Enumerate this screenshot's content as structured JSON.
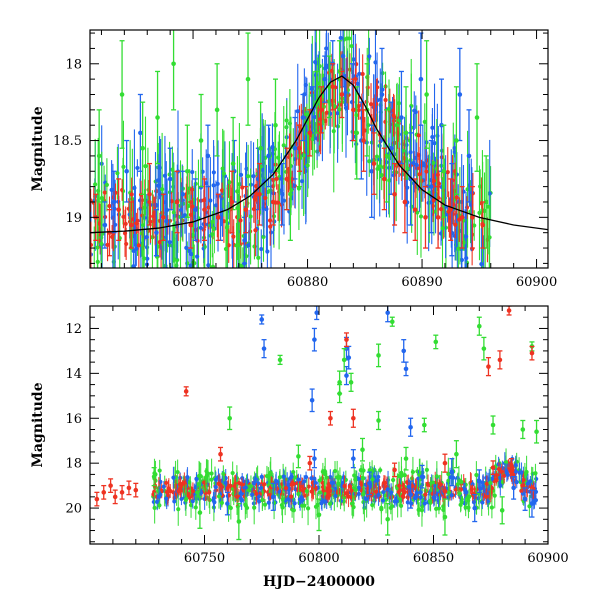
{
  "chart_data": [
    {
      "type": "scatter",
      "panel": "top",
      "title": "",
      "xlabel": "",
      "ylabel": "Magnitude",
      "xlim": [
        60861,
        60901
      ],
      "ylim": [
        19.33,
        17.78
      ],
      "y_inverted": true,
      "xticks": [
        60870,
        60880,
        60890,
        60900
      ],
      "yticks": [
        18,
        18.5,
        19
      ],
      "grid": false,
      "legend": "none",
      "series": [
        {
          "color": "#2266ee",
          "points": [
            [
              60862.3,
              19.05,
              0.15
            ],
            [
              60863.1,
              18.9,
              0.2
            ],
            [
              60864.2,
              18.7,
              0.2
            ],
            [
              60865.4,
              18.45,
              0.25
            ],
            [
              60866.8,
              19.1,
              0.15
            ],
            [
              60868.0,
              18.75,
              0.2
            ],
            [
              60869.1,
              18.85,
              0.15
            ],
            [
              60870.2,
              18.95,
              0.2
            ],
            [
              60871.3,
              18.6,
              0.2
            ],
            [
              60872.4,
              19.0,
              0.15
            ],
            [
              60873.6,
              18.7,
              0.2
            ],
            [
              60874.5,
              19.15,
              0.15
            ],
            [
              60875.7,
              18.75,
              0.2
            ],
            [
              60876.6,
              18.6,
              0.2
            ],
            [
              60877.8,
              18.85,
              0.2
            ],
            [
              60878.9,
              18.55,
              0.2
            ],
            [
              60879.6,
              18.35,
              0.15
            ],
            [
              60880.4,
              18.3,
              0.15
            ],
            [
              60881.5,
              18.1,
              0.15
            ],
            [
              60882.2,
              18.0,
              0.15
            ],
            [
              60883.1,
              17.95,
              0.2
            ],
            [
              60883.9,
              18.25,
              0.25
            ],
            [
              60884.7,
              18.5,
              0.25
            ],
            [
              60885.6,
              18.7,
              0.3
            ],
            [
              60886.5,
              18.2,
              0.3
            ],
            [
              60887.3,
              18.55,
              0.3
            ],
            [
              60888.2,
              18.35,
              0.3
            ],
            [
              60889.0,
              18.75,
              0.3
            ],
            [
              60889.9,
              18.1,
              0.3
            ],
            [
              60890.8,
              18.8,
              0.3
            ],
            [
              60891.7,
              18.4,
              0.3
            ],
            [
              60892.6,
              18.95,
              0.3
            ],
            [
              60893.3,
              18.2,
              0.3
            ],
            [
              60894.1,
              18.6,
              0.3
            ]
          ]
        },
        {
          "color": "#33dd33",
          "points": [
            [
              60861.8,
              18.6,
              0.3
            ],
            [
              60863.8,
              18.2,
              0.35
            ],
            [
              60865.6,
              18.55,
              0.3
            ],
            [
              60866.9,
              18.35,
              0.3
            ],
            [
              60868.3,
              18.0,
              0.3
            ],
            [
              60869.5,
              18.7,
              0.3
            ],
            [
              60870.7,
              18.5,
              0.3
            ],
            [
              60872.1,
              18.3,
              0.3
            ],
            [
              60873.5,
              18.65,
              0.3
            ],
            [
              60874.8,
              18.1,
              0.3
            ],
            [
              60875.9,
              18.55,
              0.3
            ],
            [
              60877.2,
              18.4,
              0.3
            ],
            [
              60878.5,
              18.85,
              0.3
            ],
            [
              60879.3,
              18.6,
              0.2
            ],
            [
              60880.8,
              18.25,
              0.2
            ],
            [
              60881.9,
              18.15,
              0.2
            ],
            [
              60882.8,
              18.05,
              0.2
            ],
            [
              60884.3,
              18.45,
              0.3
            ],
            [
              60885.2,
              18.3,
              0.3
            ],
            [
              60886.9,
              18.6,
              0.3
            ],
            [
              60888.6,
              18.45,
              0.3
            ],
            [
              60890.4,
              18.2,
              0.35
            ],
            [
              60891.9,
              18.7,
              0.3
            ],
            [
              60893.0,
              18.5,
              0.35
            ],
            [
              60894.8,
              18.35,
              0.35
            ],
            [
              60895.6,
              18.9,
              0.3
            ]
          ]
        },
        {
          "color": "#ee3322",
          "points": [
            [
              60861.5,
              19.0,
              0.15
            ],
            [
              60862.7,
              19.1,
              0.15
            ],
            [
              60863.5,
              18.95,
              0.2
            ],
            [
              60864.6,
              19.05,
              0.15
            ],
            [
              60866.2,
              18.85,
              0.2
            ],
            [
              60867.4,
              19.0,
              0.15
            ],
            [
              60868.6,
              18.9,
              0.2
            ],
            [
              60869.8,
              19.05,
              0.15
            ],
            [
              60871.0,
              18.95,
              0.2
            ],
            [
              60872.2,
              19.0,
              0.15
            ],
            [
              60873.4,
              18.9,
              0.2
            ],
            [
              60874.6,
              18.95,
              0.15
            ],
            [
              60875.8,
              18.85,
              0.2
            ],
            [
              60877.0,
              18.9,
              0.15
            ],
            [
              60878.2,
              18.75,
              0.2
            ],
            [
              60879.3,
              18.55,
              0.15
            ],
            [
              60880.2,
              18.45,
              0.15
            ],
            [
              60881.2,
              18.3,
              0.15
            ],
            [
              60882.2,
              18.15,
              0.15
            ],
            [
              60883.0,
              18.2,
              0.15
            ],
            [
              60884.0,
              18.3,
              0.2
            ],
            [
              60884.9,
              18.5,
              0.2
            ],
            [
              60885.8,
              18.65,
              0.2
            ],
            [
              60886.7,
              18.75,
              0.2
            ],
            [
              60887.6,
              18.85,
              0.2
            ],
            [
              60888.5,
              18.9,
              0.2
            ],
            [
              60889.4,
              18.95,
              0.2
            ],
            [
              60890.3,
              19.0,
              0.2
            ],
            [
              60891.4,
              19.0,
              0.2
            ],
            [
              60892.5,
              18.95,
              0.2
            ],
            [
              60893.5,
              19.0,
              0.2
            ],
            [
              60894.4,
              19.0,
              0.2
            ],
            [
              60895.3,
              19.05,
              0.15
            ]
          ]
        }
      ],
      "model_curve": {
        "color": "#000000",
        "x": [
          60861,
          60864,
          60867,
          60870,
          60873,
          60875,
          60877,
          60879,
          60880,
          60881,
          60882,
          60883,
          60884,
          60885,
          60886,
          60888,
          60890,
          60892,
          60895,
          60898,
          60901
        ],
        "y": [
          19.1,
          19.09,
          19.07,
          19.03,
          18.95,
          18.86,
          18.72,
          18.5,
          18.36,
          18.22,
          18.12,
          18.08,
          18.14,
          18.27,
          18.42,
          18.66,
          18.82,
          18.92,
          19.0,
          19.05,
          19.08
        ]
      }
    },
    {
      "type": "scatter",
      "panel": "bottom",
      "title": "",
      "xlabel": "HJD−2400000",
      "ylabel": "Magnitude",
      "xlim": [
        60700,
        60900
      ],
      "ylim": [
        21.6,
        11.0
      ],
      "y_inverted": true,
      "xticks": [
        60750,
        60800,
        60850,
        60900
      ],
      "yticks": [
        12,
        14,
        16,
        18,
        20
      ],
      "grid": false,
      "legend": "none",
      "series": [
        {
          "color": "#2266ee",
          "points": [
            [
              60775,
              11.6,
              0.2
            ],
            [
              60776,
              12.9,
              0.4
            ],
            [
              60799,
              11.3,
              0.3
            ],
            [
              60798,
              12.5,
              0.5
            ],
            [
              60797,
              15.2,
              0.5
            ],
            [
              60812,
              12.9,
              0.5
            ],
            [
              60813,
              13.3,
              0.5
            ],
            [
              60812,
              14.1,
              0.4
            ],
            [
              60830,
              11.3,
              0.4
            ],
            [
              60837,
              13.0,
              0.5
            ],
            [
              60838,
              13.8,
              0.3
            ],
            [
              60840,
              16.4,
              0.4
            ],
            [
              60798,
              17.8,
              0.4
            ],
            [
              60815,
              17.8,
              0.4
            ],
            [
              60822,
              18.9,
              0.5
            ],
            [
              60845,
              18.6,
              0.5
            ],
            [
              60858,
              18.4,
              0.6
            ],
            [
              60870,
              18.8,
              0.5
            ],
            [
              60885,
              19.1,
              0.5
            ],
            [
              60890,
              19.6,
              0.5
            ],
            [
              60760,
              19.8,
              0.5
            ],
            [
              60780,
              19.5,
              0.6
            ],
            [
              60840,
              19.4,
              0.6
            ],
            [
              60868,
              20.0,
              0.6
            ],
            [
              60893,
              19.8,
              0.6
            ]
          ]
        },
        {
          "color": "#33dd33",
          "points": [
            [
              60832,
              11.7,
              0.2
            ],
            [
              60851,
              12.6,
              0.3
            ],
            [
              60870,
              11.9,
              0.4
            ],
            [
              60872,
              12.9,
              0.5
            ],
            [
              60893,
              12.8,
              0.2
            ],
            [
              60811,
              13.4,
              0.5
            ],
            [
              60809,
              14.4,
              0.5
            ],
            [
              60814,
              14.4,
              0.4
            ],
            [
              60826,
              13.2,
              0.5
            ],
            [
              60809,
              14.9,
              0.4
            ],
            [
              60761,
              16.0,
              0.5
            ],
            [
              60826,
              16.1,
              0.4
            ],
            [
              60846,
              16.3,
              0.3
            ],
            [
              60876,
              16.3,
              0.4
            ],
            [
              60889,
              16.5,
              0.4
            ],
            [
              60895,
              16.6,
              0.5
            ],
            [
              60783,
              13.4,
              0.2
            ],
            [
              60791,
              17.7,
              0.5
            ],
            [
              60819,
              17.4,
              0.5
            ],
            [
              60838,
              17.8,
              0.5
            ],
            [
              60860,
              17.6,
              0.6
            ],
            [
              60748,
              20.2,
              0.7
            ],
            [
              60765,
              20.6,
              0.8
            ],
            [
              60800,
              20.3,
              0.7
            ],
            [
              60830,
              20.5,
              0.7
            ],
            [
              60855,
              20.4,
              0.8
            ],
            [
              60880,
              20.1,
              0.6
            ],
            [
              60728,
              18.6,
              0.4
            ]
          ]
        },
        {
          "color": "#ee3322",
          "points": [
            [
              60742,
              14.8,
              0.2
            ],
            [
              60805,
              16.0,
              0.3
            ],
            [
              60815,
              16.0,
              0.4
            ],
            [
              60812,
              12.5,
              0.3
            ],
            [
              60883,
              11.2,
              0.2
            ],
            [
              60874,
              13.7,
              0.4
            ],
            [
              60879,
              13.4,
              0.4
            ],
            [
              60893,
              13.1,
              0.3
            ],
            [
              60757,
              17.6,
              0.3
            ],
            [
              60796,
              18.0,
              0.3
            ],
            [
              60833,
              18.3,
              0.3
            ],
            [
              60855,
              18.0,
              0.4
            ],
            [
              60876,
              18.2,
              0.3
            ],
            [
              60884,
              18.1,
              0.3
            ],
            [
              60703,
              19.6,
              0.3
            ],
            [
              60706,
              19.3,
              0.3
            ],
            [
              60709,
              19.0,
              0.3
            ],
            [
              60711,
              19.5,
              0.3
            ],
            [
              60714,
              19.3,
              0.3
            ],
            [
              60717,
              19.1,
              0.3
            ],
            [
              60720,
              19.2,
              0.3
            ]
          ]
        }
      ],
      "dense_band": {
        "x_start": 60727,
        "x_end": 60895,
        "center": 19.2,
        "colors": [
          "#33dd33",
          "#2266ee",
          "#ee3322"
        ]
      }
    }
  ]
}
